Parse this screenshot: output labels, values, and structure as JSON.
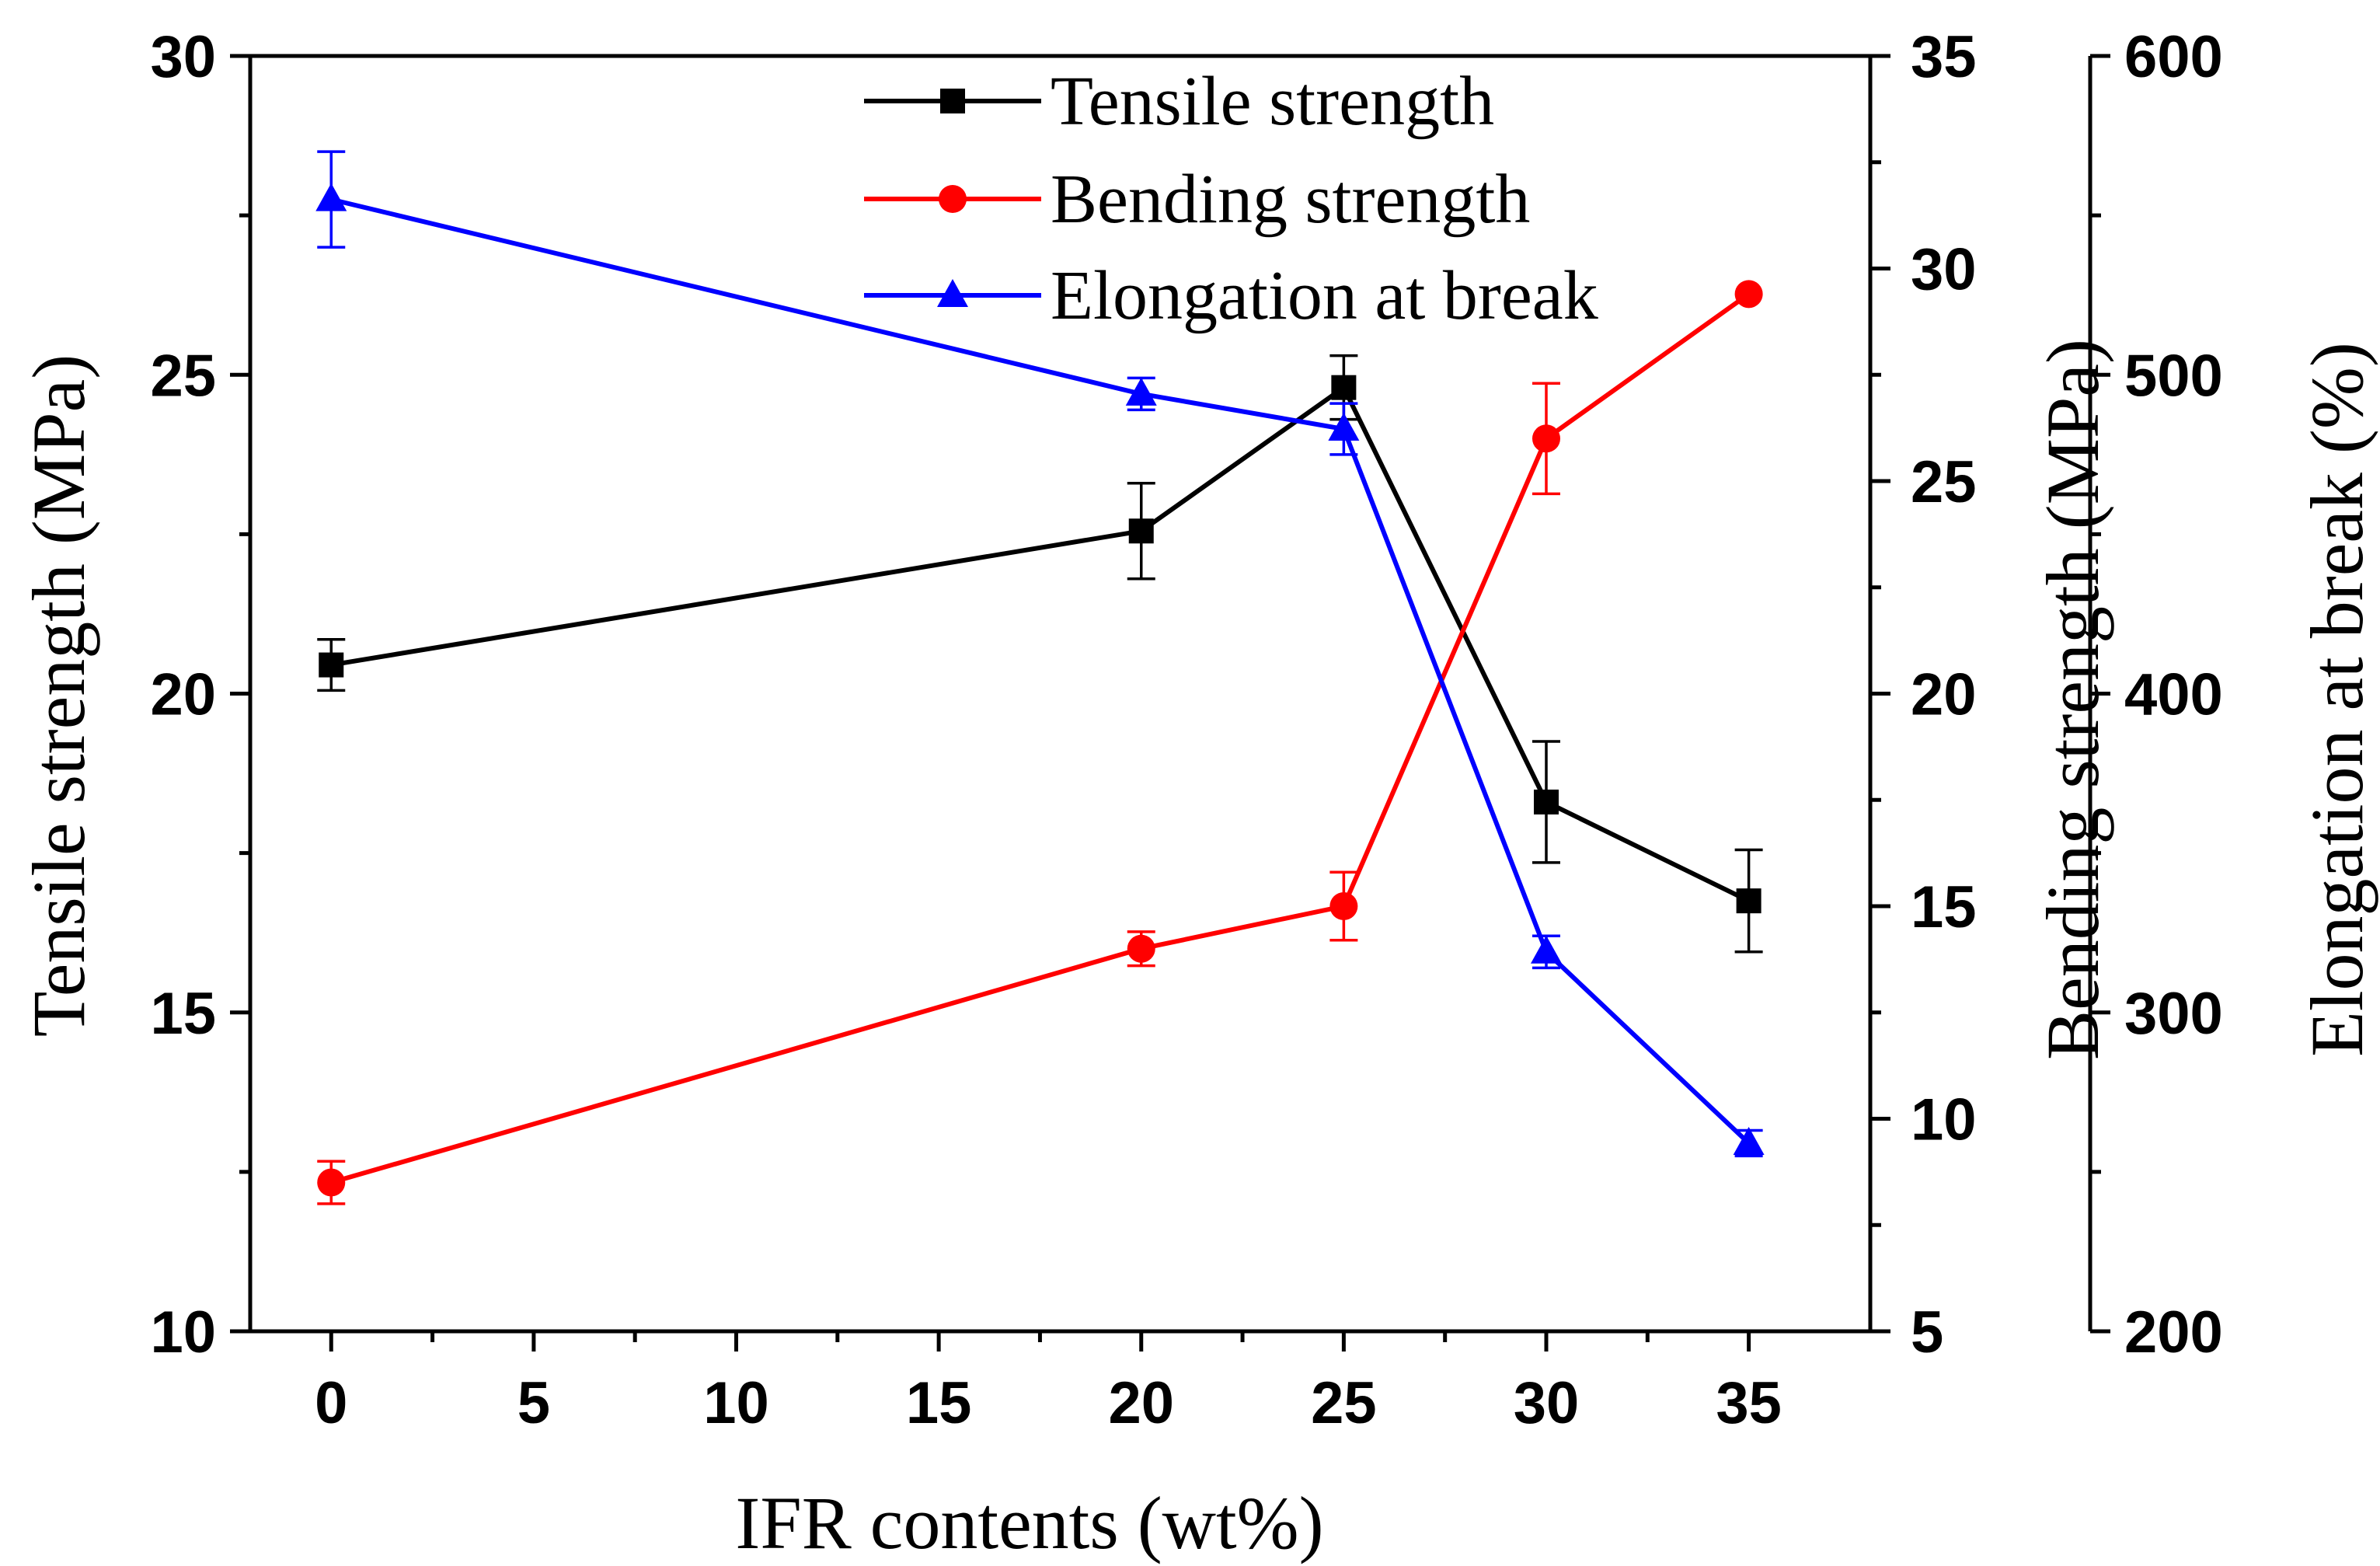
{
  "chart_data": {
    "type": "line",
    "x_label": "IFR contents (wt%)",
    "x_ticks": [
      0,
      5,
      10,
      15,
      20,
      25,
      30,
      35
    ],
    "x_range": [
      -2,
      38
    ],
    "x": [
      0,
      20,
      25,
      30,
      35
    ],
    "axes": {
      "left": {
        "label": "Tensile strength (MPa)",
        "range": [
          10,
          30
        ],
        "ticks": [
          10,
          15,
          20,
          25,
          30
        ],
        "minor_step": 2.5
      },
      "right": {
        "label": "Bending strength (MPa)",
        "range": [
          5,
          35
        ],
        "ticks": [
          5,
          10,
          15,
          20,
          25,
          30,
          35
        ],
        "minor_step": 2.5
      },
      "far_right": {
        "label": "Elongation at break (%)",
        "range": [
          200,
          600
        ],
        "ticks": [
          200,
          300,
          400,
          500,
          600
        ],
        "minor_step": 50
      }
    },
    "series": [
      {
        "name": "Tensile strength",
        "axis": "left",
        "color": "#000000",
        "marker": "square",
        "values": [
          20.45,
          22.55,
          24.8,
          18.3,
          16.75
        ],
        "errors": [
          0.4,
          0.75,
          0.5,
          0.95,
          0.8
        ]
      },
      {
        "name": "Bending strength",
        "axis": "right",
        "color": "#ff0000",
        "marker": "circle",
        "values": [
          8.5,
          14.0,
          15.0,
          26.0,
          29.4
        ],
        "errors": [
          0.5,
          0.4,
          0.8,
          1.3,
          0.0
        ]
      },
      {
        "name": "Elongation at break",
        "axis": "far_right",
        "color": "#0000ff",
        "marker": "triangle",
        "values": [
          555,
          494,
          483,
          319,
          259
        ],
        "errors": [
          15,
          5,
          8,
          5,
          4
        ]
      }
    ],
    "legend_position": "top-center"
  }
}
